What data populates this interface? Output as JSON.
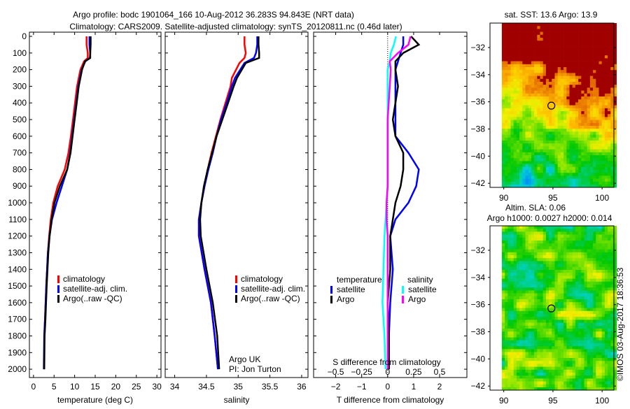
{
  "chart_data": {
    "title": "Argo profile: bodc 1901064_166 10-Aug-2012 36.283S 94.843E (NRT data)",
    "subtitle": "Climatology: CARS2009. Satellite-adjusted climatology: synTS_20120811.nc (0.46d later)",
    "depth_axis": {
      "range": [
        0,
        2050
      ],
      "ticks": [
        0,
        100,
        200,
        300,
        400,
        500,
        600,
        700,
        800,
        900,
        1000,
        1100,
        1200,
        1300,
        1400,
        1500,
        1600,
        1700,
        1800,
        1900,
        2000
      ]
    },
    "panels": [
      {
        "type": "line",
        "xlabel": "temperature (deg C)",
        "xlim": [
          -1,
          31
        ],
        "xticks": [
          0,
          5,
          10,
          15,
          20,
          25,
          30
        ],
        "legend": [
          "climatology",
          "satellite-adj. clim.",
          "Argo(..raw -QC)"
        ],
        "series": [
          {
            "name": "climatology",
            "color": "#ff0000",
            "depth": [
              0,
              50,
              100,
              130,
              150,
              200,
              300,
              400,
              500,
              600,
              700,
              800,
              900,
              1000,
              1100,
              1200,
              1300,
              1500,
              1700,
              1800,
              2000
            ],
            "values": [
              12.9,
              12.9,
              13.2,
              13.2,
              12.3,
              11.4,
              10.6,
              10.1,
              9.6,
              9.1,
              8.5,
              7.6,
              5.9,
              4.8,
              4.2,
              3.8,
              3.5,
              3.1,
              2.8,
              2.6,
              2.6
            ]
          },
          {
            "name": "satellite-adj. clim.",
            "color": "#0000ff",
            "depth": [
              0,
              50,
              100,
              130,
              150,
              200,
              300,
              400,
              500,
              600,
              700,
              800,
              900,
              1000,
              1100,
              1200,
              1300,
              1500,
              1700,
              1800,
              2000
            ],
            "values": [
              13.6,
              13.6,
              13.8,
              13.7,
              12.6,
              11.7,
              10.9,
              10.4,
              9.9,
              9.4,
              8.9,
              8.2,
              6.9,
              5.6,
              4.5,
              3.9,
              3.5,
              3.1,
              2.8,
              2.6,
              2.5
            ]
          },
          {
            "name": "Argo(..raw -QC)",
            "color": "#000000",
            "depth": [
              0,
              50,
              100,
              130,
              150,
              200,
              300,
              400,
              500,
              600,
              700,
              800,
              900,
              1000,
              1100,
              1200,
              1300,
              1500,
              1700,
              1800,
              2000
            ],
            "values": [
              13.9,
              13.9,
              13.8,
              13.8,
              12.5,
              11.8,
              11.0,
              10.5,
              10.0,
              9.5,
              9.0,
              8.2,
              6.4,
              5.1,
              4.4,
              3.9,
              3.6,
              3.2,
              2.9,
              2.7,
              2.6
            ]
          }
        ]
      },
      {
        "type": "line",
        "xlabel": "salinity",
        "xlim": [
          33.85,
          36.1
        ],
        "xticks": [
          34,
          34.5,
          35,
          35.5,
          36
        ],
        "legend": [
          "climatology",
          "satellite-adj. clim.",
          "Argo(..raw -QC)"
        ],
        "annotation": [
          "Argo UK",
          "PI: Jon Turton"
        ],
        "series": [
          {
            "name": "climatology",
            "color": "#ff0000",
            "depth": [
              0,
              50,
              100,
              130,
              160,
              250,
              300,
              400,
              500,
              600,
              700,
              800,
              900,
              1000,
              1100,
              1200,
              1400,
              1600,
              1800,
              2000
            ],
            "values": [
              35.1,
              35.1,
              35.12,
              35.1,
              35.02,
              34.9,
              34.88,
              34.8,
              34.72,
              34.65,
              34.58,
              34.52,
              34.47,
              34.42,
              34.38,
              34.38,
              34.47,
              34.57,
              34.63,
              34.68
            ]
          },
          {
            "name": "satellite-adj. clim.",
            "color": "#0000ff",
            "depth": [
              0,
              50,
              100,
              130,
              160,
              250,
              300,
              400,
              500,
              600,
              700,
              800,
              900,
              1000,
              1100,
              1200,
              1400,
              1600,
              1800,
              2000
            ],
            "values": [
              35.3,
              35.3,
              35.28,
              35.25,
              35.1,
              34.95,
              34.9,
              34.82,
              34.73,
              34.66,
              34.6,
              34.53,
              34.47,
              34.42,
              34.38,
              34.38,
              34.47,
              34.57,
              34.63,
              34.68
            ]
          },
          {
            "name": "Argo(..raw -QC)",
            "color": "#000000",
            "depth": [
              0,
              50,
              100,
              130,
              160,
              250,
              300,
              400,
              500,
              600,
              700,
              800,
              900,
              1000,
              1100,
              1200,
              1400,
              1600,
              1800,
              2000
            ],
            "values": [
              35.32,
              35.32,
              35.33,
              35.33,
              35.12,
              34.98,
              34.93,
              34.84,
              34.75,
              34.66,
              34.59,
              34.52,
              34.46,
              34.42,
              34.4,
              34.41,
              34.5,
              34.6,
              34.67,
              34.7
            ]
          }
        ]
      },
      {
        "type": "line",
        "xlabel": "T difference from climatology",
        "xlabel_top": "S difference from climatology",
        "xlim": [
          -2.85,
          3.05
        ],
        "xticks": [
          -2,
          -1,
          0,
          1,
          2
        ],
        "xticks_top": [
          -0.5,
          -0.25,
          0,
          0.25,
          0.5
        ],
        "legend": {
          "temperature_title": "temperature",
          "salinity_title": "salinity",
          "items": [
            "satellite",
            "Argo",
            "satellite",
            "Argo"
          ]
        },
        "series": [
          {
            "name": "temperature satellite",
            "color": "#0000ff",
            "depth": [
              0,
              50,
              100,
              150,
              200,
              300,
              400,
              500,
              600,
              700,
              800,
              900,
              1000,
              1100,
              1200,
              1400,
              1600,
              1800,
              2000
            ],
            "values": [
              0.6,
              0.6,
              0.5,
              0.4,
              0.3,
              0.3,
              0.3,
              0.3,
              0.3,
              0.8,
              1.2,
              1.1,
              0.8,
              0.3,
              0.1,
              0.2,
              0.1,
              0.05,
              0.05
            ]
          },
          {
            "name": "temperature Argo",
            "color": "#000000",
            "depth": [
              0,
              50,
              100,
              150,
              200,
              300,
              400,
              500,
              600,
              700,
              800,
              900,
              1000,
              1100,
              1200,
              1400,
              1600,
              1800,
              2000
            ],
            "values": [
              0.9,
              1.2,
              0.6,
              0.3,
              0.3,
              0.4,
              0.3,
              0.2,
              0.3,
              0.6,
              0.6,
              0.5,
              0.3,
              0.2,
              0.1,
              0.1,
              0.0,
              0.05,
              0.05
            ]
          },
          {
            "name": "salinity satellite",
            "color": "#00ffff",
            "depth": [
              0,
              50,
              100,
              150,
              200,
              300,
              400,
              500,
              600,
              700,
              800,
              900,
              1000,
              1100,
              1200,
              1400,
              1600,
              1800,
              2000
            ],
            "values": [
              0.08,
              0.06,
              0.03,
              0.02,
              0.0,
              0.0,
              0.0,
              0.0,
              0.0,
              0.0,
              0.0,
              0.0,
              -0.01,
              -0.02,
              -0.03,
              -0.04,
              -0.05,
              -0.03,
              -0.02
            ]
          },
          {
            "name": "salinity Argo",
            "color": "#ff00ff",
            "depth": [
              0,
              50,
              100,
              150,
              200,
              300,
              400,
              500,
              600,
              700,
              800,
              900,
              1000,
              1100,
              1200,
              1400,
              1600,
              1800,
              2000
            ],
            "values": [
              0.22,
              0.2,
              0.1,
              0.02,
              0.03,
              0.02,
              0.01,
              0.0,
              0.0,
              0.0,
              0.0,
              0.0,
              -0.01,
              -0.01,
              0.0,
              0.0,
              0.0,
              0.0,
              0.0
            ]
          }
        ]
      },
      {
        "type": "heatmap",
        "title": "sat. SST: 13.6 Argo: 13.9",
        "xlim": [
          88.6,
          101.2
        ],
        "ylim": [
          -42.3,
          -30.2
        ],
        "xticks": [
          90,
          95,
          100
        ],
        "yticks": [
          -32,
          -34,
          -36,
          -38,
          -40,
          -42
        ],
        "marker": {
          "lon": 94.843,
          "lat": -36.283
        }
      },
      {
        "type": "heatmap",
        "title": "Altim. SLA: 0.06",
        "subtitle": "Argo h1000: 0.0027 h2000: 0.014",
        "xlim": [
          88.6,
          101.2
        ],
        "ylim": [
          -42.3,
          -30.2
        ],
        "xticks": [
          90,
          95,
          100
        ],
        "yticks": [
          -32,
          -34,
          -36,
          -38,
          -40,
          -42
        ],
        "marker": {
          "lon": 94.843,
          "lat": -36.283
        }
      }
    ],
    "credit": "©IMOS 03-Aug-2017 18:36:53"
  }
}
